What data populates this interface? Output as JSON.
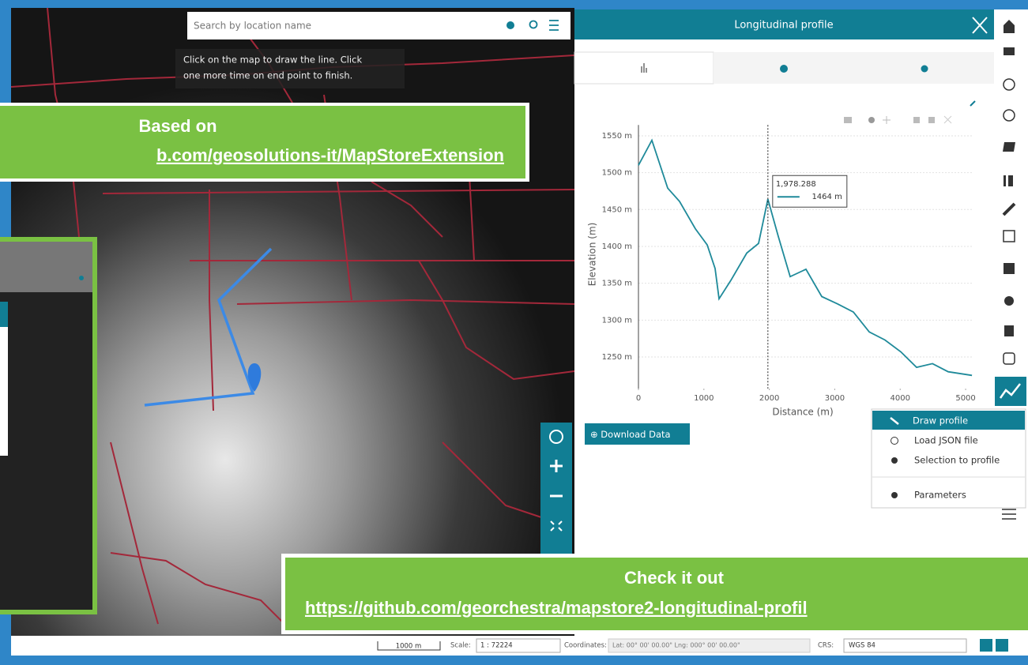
{
  "search": {
    "placeholder": "Search by location name"
  },
  "hint": [
    "Click on the map to draw the line. Click",
    "one more time on end point to finish."
  ],
  "banners": [
    {
      "title": "Based on",
      "link": "b.com/geosolutions-it/MapStoreExtension"
    },
    {
      "title": "Check it out",
      "link": "https://github.com/georchestra/mapstore2-longitudinal-profil"
    }
  ],
  "panel": {
    "title": "Longitudinal profile",
    "download": "Download Data"
  },
  "chart_data": {
    "type": "line",
    "x_label": "Distance (m)",
    "y_label": "Elevation (m)",
    "color": "#1f8a9a",
    "x": [
      0,
      205,
      447,
      628,
      870,
      1051,
      1171,
      1232,
      1413,
      1655,
      1836,
      1978,
      2138,
      2319,
      2560,
      2802,
      3043,
      3285,
      3527,
      3768,
      4010,
      4251,
      4493,
      4734,
      5097
    ],
    "values": [
      1510,
      1544,
      1479,
      1461,
      1424,
      1402,
      1370,
      1329,
      1354,
      1391,
      1404,
      1464,
      1413,
      1359,
      1369,
      1332,
      1322,
      1311,
      1284,
      1273,
      1257,
      1236,
      1241,
      1230,
      1225
    ],
    "xlim": [
      0,
      5120
    ],
    "ylim": [
      1220,
      1570
    ],
    "xticks": [
      0,
      1000,
      2000,
      3000,
      4000,
      5000
    ],
    "yticks": [
      {
        "value": 1250,
        "label": "1250 m"
      },
      {
        "value": 1300,
        "label": "1300 m"
      },
      {
        "value": 1350,
        "label": "1350 m"
      },
      {
        "value": 1400,
        "label": "1400 m"
      },
      {
        "value": 1450,
        "label": "1450 m"
      },
      {
        "value": 1500,
        "label": "1500 m"
      },
      {
        "value": 1550,
        "label": "1550 m"
      }
    ],
    "grid": true,
    "tooltip": {
      "x": {
        "value": 1978.288,
        "label": "1,978.288"
      },
      "y": {
        "value": 1464,
        "label": "1464 m"
      }
    }
  },
  "menu": [
    "Draw profile",
    "Load JSON file",
    "Selection to profile",
    "Parameters"
  ],
  "footer": {
    "scale_bar": "1000 m",
    "scale_label": "Scale:",
    "scale_value": "1 : 72224",
    "coordinates_label": "Coordinates:",
    "coordinates_value": "Lat: 00° 00' 00.00\" Lng: 000° 00' 00.00\"",
    "crs_label": "CRS:",
    "crs_value": "WGS 84"
  }
}
